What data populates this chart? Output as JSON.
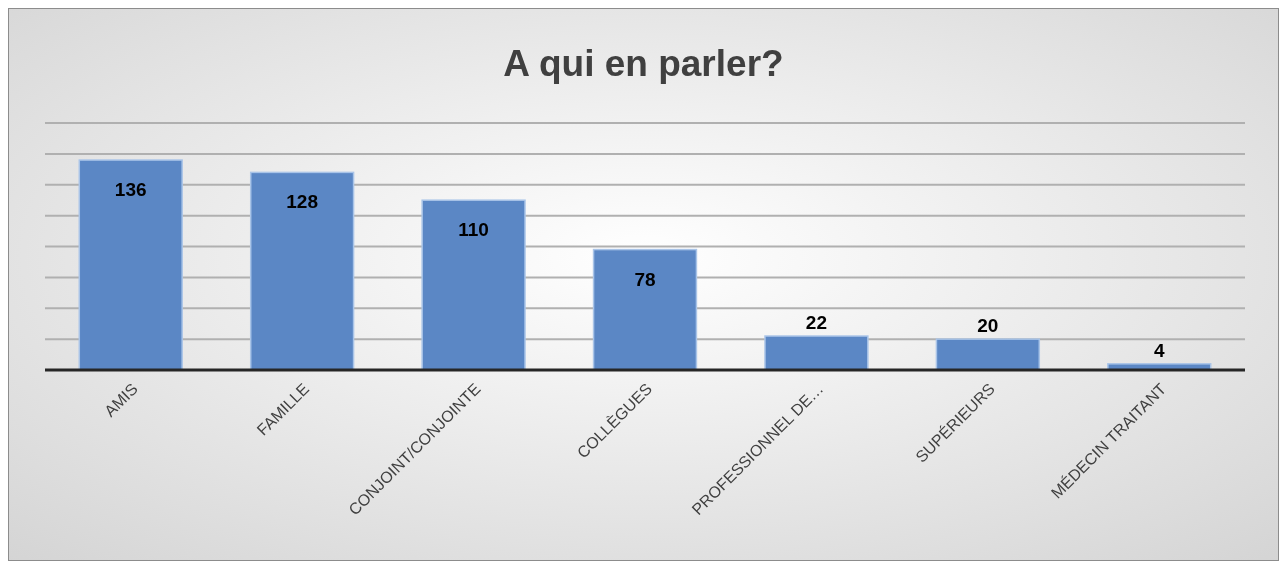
{
  "chart_data": {
    "type": "bar",
    "title": "A qui en parler?",
    "categories": [
      "AMIS",
      "FAMILLE",
      "CONJOINT/CONJOINTE",
      "COLLÈGUES",
      "PROFESSIONNEL DE…",
      "SUPÉRIEURS",
      "MÉDECIN TRAITANT"
    ],
    "values": [
      136,
      128,
      110,
      78,
      22,
      20,
      4
    ],
    "color": "#5b87c5",
    "ylim": [
      0,
      160
    ],
    "yticks": [
      {
        "value": 0,
        "label": null
      },
      {
        "value": 20,
        "label": null
      },
      {
        "value": 40,
        "label": null
      },
      {
        "value": 60,
        "label": null
      },
      {
        "value": 80,
        "label": null
      },
      {
        "value": 100,
        "label": null
      },
      {
        "value": 120,
        "label": null
      },
      {
        "value": 140,
        "label": null
      },
      {
        "value": 160,
        "label": null
      }
    ],
    "tick_labels": "x",
    "grid": "y",
    "data_labels": true
  }
}
